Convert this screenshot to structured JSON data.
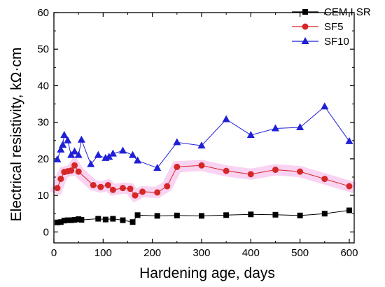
{
  "chart_data": {
    "type": "line",
    "xlabel": "Hardening age, days",
    "ylabel": "Electrical resistivity, kΩ·cm",
    "xlim": [
      0,
      610
    ],
    "ylim": [
      -3,
      60
    ],
    "xticks": [
      0,
      100,
      200,
      300,
      400,
      500,
      600
    ],
    "yticks": [
      0,
      10,
      20,
      30,
      40,
      50,
      60
    ],
    "xtick_labels": [
      "0",
      "100",
      "200",
      "300",
      "400",
      "500",
      "600"
    ],
    "ytick_labels": [
      "0",
      "10",
      "20",
      "30",
      "40",
      "50",
      "60"
    ],
    "legend_position": "top-right",
    "grid": false,
    "series": [
      {
        "name": "CEM I SR",
        "color": "#000000",
        "marker": "square",
        "x": [
          7,
          14,
          21,
          28,
          35,
          42,
          50,
          56,
          90,
          105,
          120,
          140,
          160,
          170,
          210,
          250,
          300,
          350,
          400,
          450,
          500,
          550,
          600
        ],
        "y": [
          2.6,
          2.7,
          3.1,
          3.2,
          3.2,
          3.3,
          3.5,
          3.3,
          3.6,
          3.4,
          3.6,
          3.2,
          2.7,
          4.6,
          4.4,
          4.5,
          4.4,
          4.6,
          4.8,
          4.7,
          4.5,
          5.0,
          5.9
        ]
      },
      {
        "name": "SF5",
        "color": "#d62728",
        "marker": "circle",
        "x": [
          7,
          14,
          21,
          28,
          35,
          42,
          50,
          80,
          95,
          110,
          120,
          140,
          155,
          165,
          180,
          210,
          230,
          250,
          300,
          350,
          400,
          450,
          500,
          550,
          600
        ],
        "y": [
          12.0,
          14.5,
          16.4,
          16.6,
          16.8,
          18.2,
          16.5,
          12.8,
          12.3,
          12.8,
          11.5,
          12.0,
          11.8,
          10.0,
          11.0,
          10.8,
          12.5,
          17.8,
          18.2,
          16.7,
          15.8,
          17.0,
          16.5,
          14.5,
          12.5
        ]
      },
      {
        "name": "SF10",
        "color": "#1f1fd6",
        "marker": "triangle",
        "x": [
          7,
          14,
          18,
          21,
          28,
          35,
          42,
          50,
          56,
          75,
          90,
          105,
          112,
          120,
          140,
          160,
          170,
          210,
          250,
          300,
          350,
          400,
          450,
          500,
          550,
          600
        ],
        "y": [
          19.8,
          22.5,
          23.8,
          26.5,
          25.0,
          21.0,
          22.0,
          21.0,
          25.2,
          18.5,
          21.0,
          20.2,
          20.5,
          21.4,
          22.2,
          21.0,
          19.5,
          17.5,
          24.5,
          23.6,
          30.8,
          26.5,
          28.3,
          28.6,
          34.3,
          24.8
        ]
      }
    ]
  }
}
